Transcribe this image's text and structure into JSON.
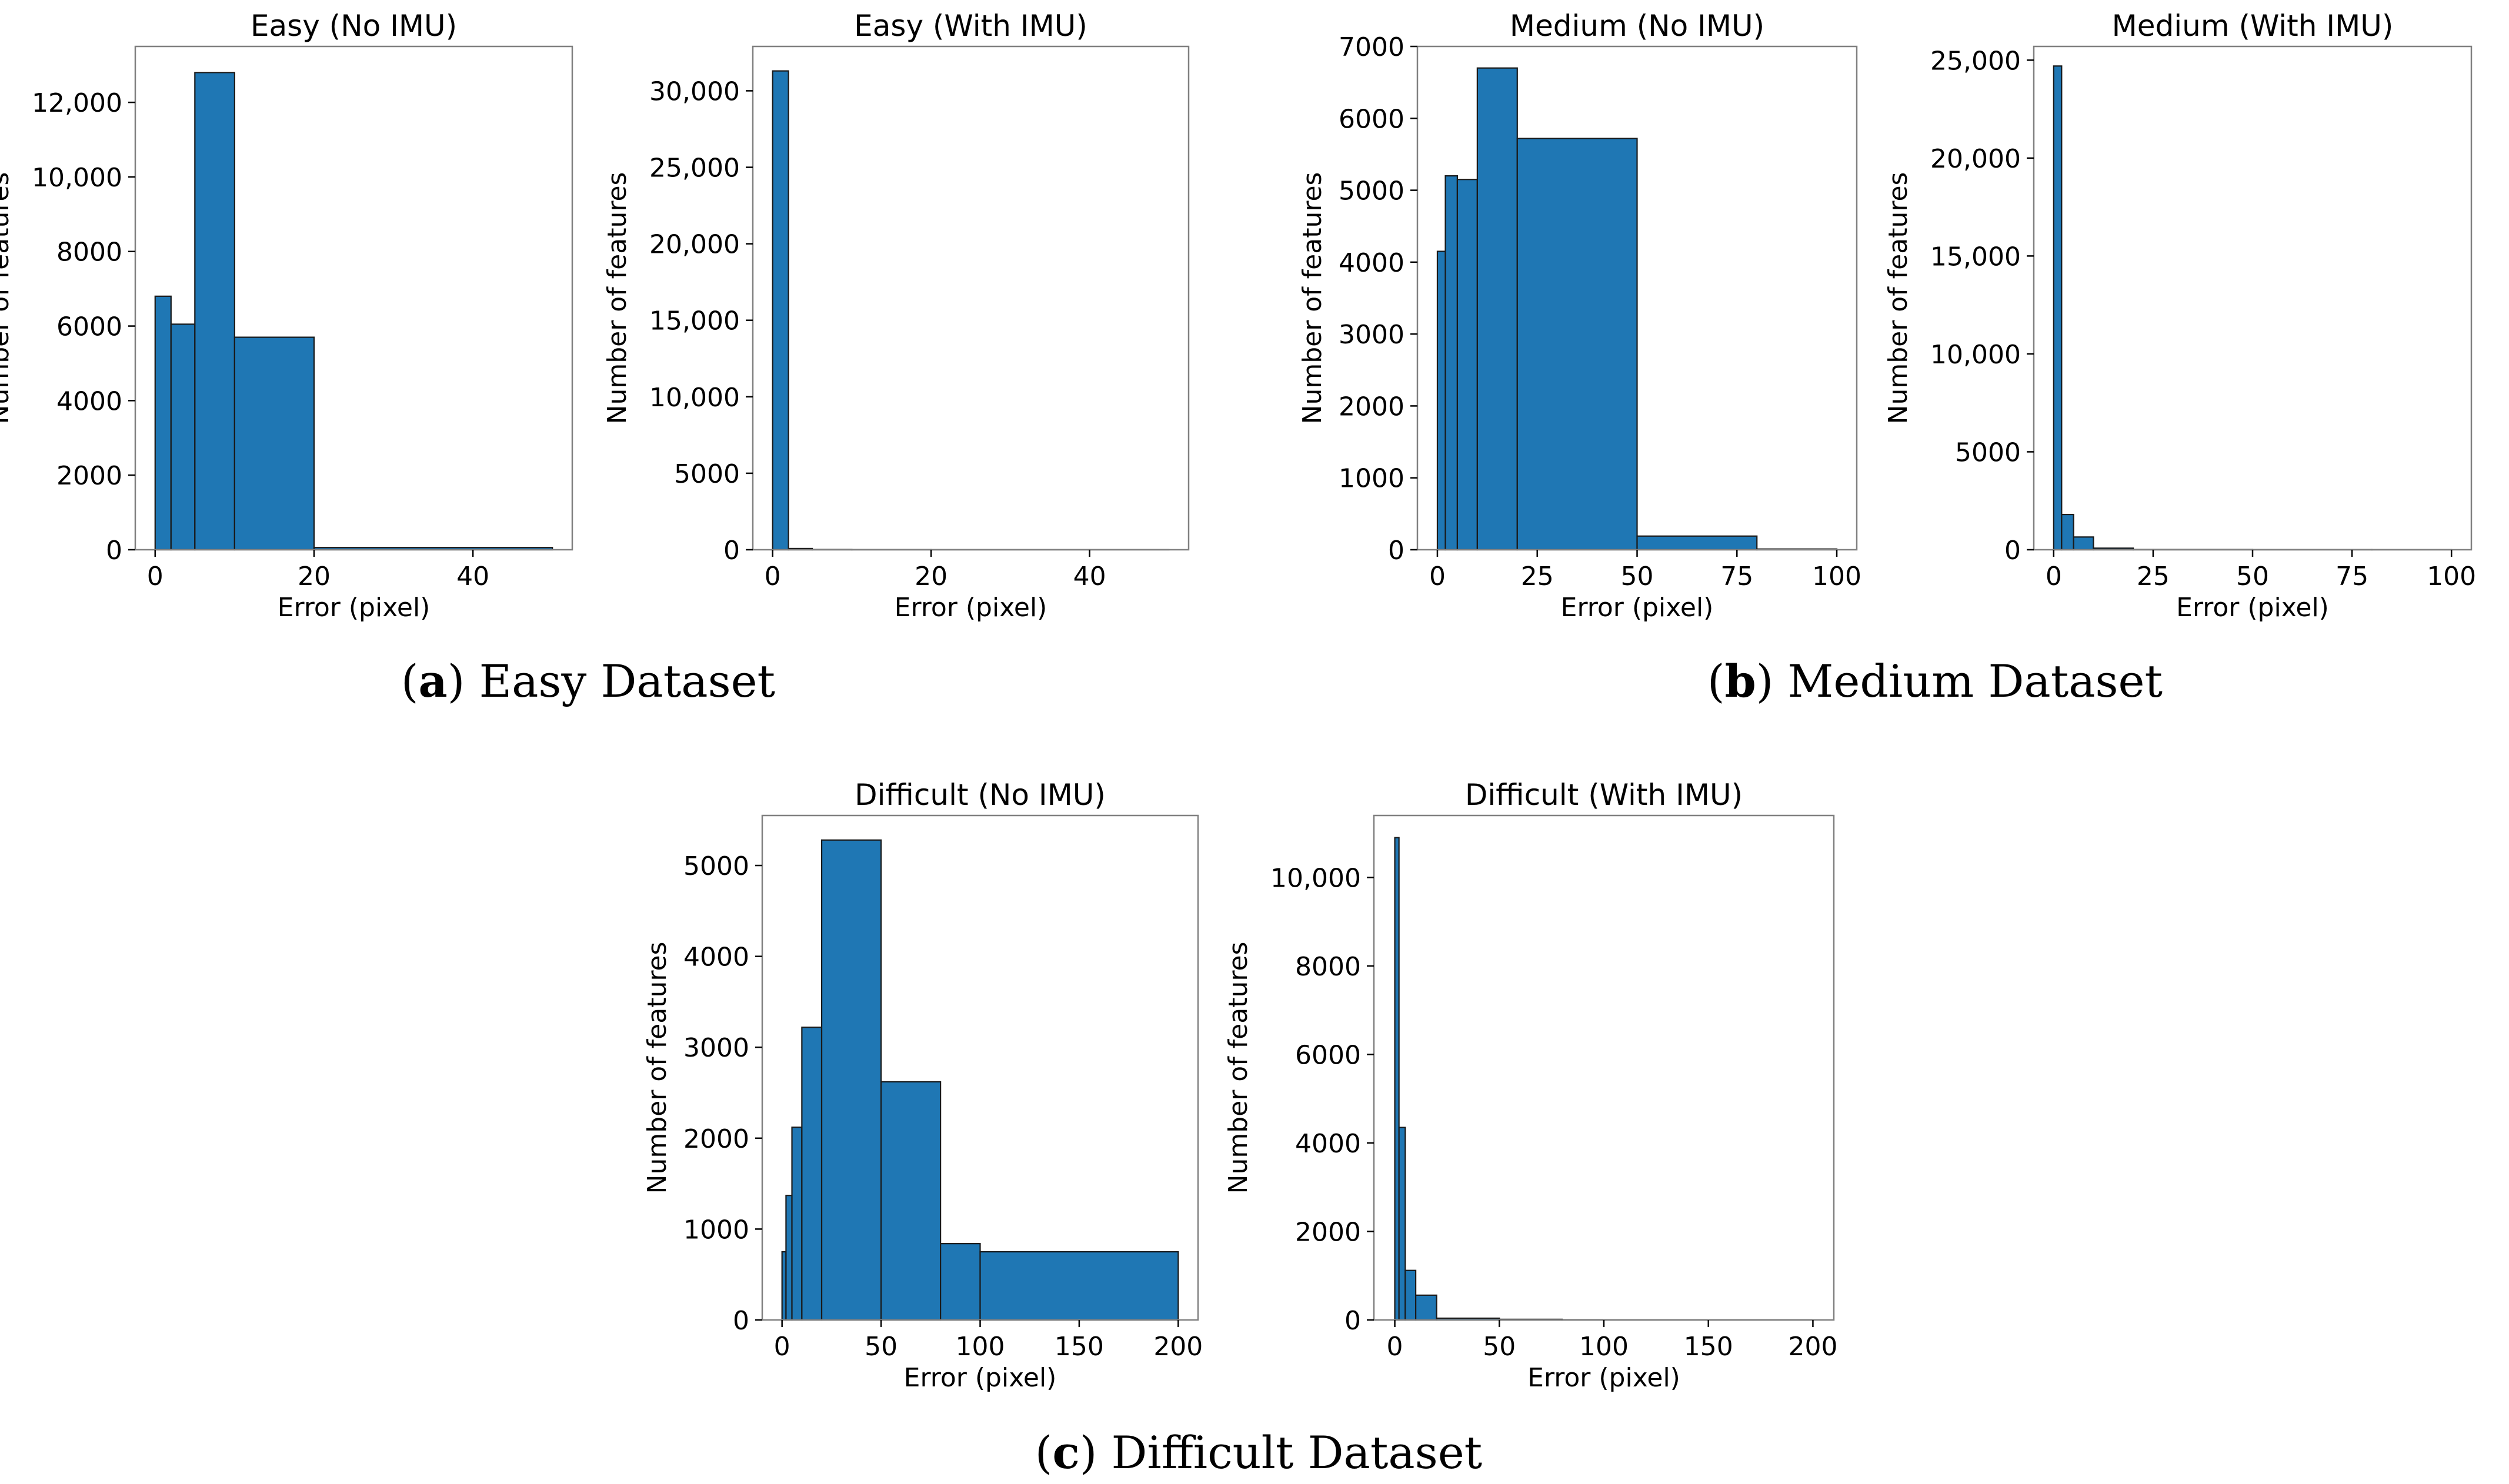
{
  "figure": {
    "captions": [
      {
        "letter": "a",
        "text": " Easy Dataset"
      },
      {
        "letter": "b",
        "text": " Medium Dataset"
      },
      {
        "letter": "c",
        "text": " Difficult Dataset"
      }
    ]
  },
  "colors": {
    "bar_fill": "#1f77b4",
    "bar_edge": "#1a1a1a",
    "frame": "#808080"
  },
  "chart_data": [
    {
      "type": "bar",
      "title": "Easy (No IMU)",
      "xlabel": "Error (pixel)",
      "ylabel": "Number of features",
      "xlim": [
        -2.5,
        52.5
      ],
      "ylim": [
        0,
        13500
      ],
      "xticks": [
        0,
        20,
        40
      ],
      "xtick_labels": [
        "0",
        "20",
        "40"
      ],
      "yticks": [
        0,
        2000,
        4000,
        6000,
        8000,
        10000,
        12000
      ],
      "ytick_labels": [
        "0",
        "2000",
        "4000",
        "6000",
        "8000",
        "10,000",
        "12,000"
      ],
      "bins": [
        [
          0,
          2,
          6800
        ],
        [
          2,
          5,
          6050
        ],
        [
          5,
          10,
          12800
        ],
        [
          10,
          20,
          5700
        ],
        [
          20,
          50,
          60
        ]
      ]
    },
    {
      "type": "bar",
      "title": "Easy (With IMU)",
      "xlabel": "Error (pixel)",
      "ylabel": "Number of features",
      "xlim": [
        -2.5,
        52.5
      ],
      "ylim": [
        0,
        32900
      ],
      "xticks": [
        0,
        20,
        40
      ],
      "xtick_labels": [
        "0",
        "20",
        "40"
      ],
      "yticks": [
        0,
        5000,
        10000,
        15000,
        20000,
        25000,
        30000
      ],
      "ytick_labels": [
        "0",
        "5000",
        "10,000",
        "15,000",
        "20,000",
        "25,000",
        "30,000"
      ],
      "bins": [
        [
          0,
          2,
          31300
        ],
        [
          2,
          5,
          80
        ],
        [
          5,
          10,
          15
        ],
        [
          10,
          20,
          5
        ],
        [
          20,
          50,
          2
        ]
      ]
    },
    {
      "type": "bar",
      "title": "Medium (No IMU)",
      "xlabel": "Error (pixel)",
      "ylabel": "Number of features",
      "xlim": [
        -5,
        105
      ],
      "ylim": [
        0,
        7000
      ],
      "xticks": [
        0,
        25,
        50,
        75,
        100
      ],
      "xtick_labels": [
        "0",
        "25",
        "50",
        "75",
        "100"
      ],
      "yticks": [
        0,
        1000,
        2000,
        3000,
        4000,
        5000,
        6000,
        7000
      ],
      "ytick_labels": [
        "0",
        "1000",
        "2000",
        "3000",
        "4000",
        "5000",
        "6000",
        "7000"
      ],
      "bins": [
        [
          0,
          2,
          4150
        ],
        [
          2,
          5,
          5200
        ],
        [
          5,
          10,
          5150
        ],
        [
          10,
          20,
          6700
        ],
        [
          20,
          50,
          5720
        ],
        [
          50,
          80,
          190
        ],
        [
          80,
          100,
          10
        ]
      ]
    },
    {
      "type": "bar",
      "title": "Medium (With IMU)",
      "xlabel": "Error (pixel)",
      "ylabel": "Number of features",
      "xlim": [
        -5,
        105
      ],
      "ylim": [
        0,
        25700
      ],
      "xticks": [
        0,
        25,
        50,
        75,
        100
      ],
      "xtick_labels": [
        "0",
        "25",
        "50",
        "75",
        "100"
      ],
      "yticks": [
        0,
        5000,
        10000,
        15000,
        20000,
        25000
      ],
      "ytick_labels": [
        "0",
        "5000",
        "10,000",
        "15,000",
        "20,000",
        "25,000"
      ],
      "bins": [
        [
          0,
          2,
          24700
        ],
        [
          2,
          5,
          1800
        ],
        [
          5,
          10,
          650
        ],
        [
          10,
          20,
          80
        ],
        [
          20,
          50,
          10
        ],
        [
          50,
          80,
          3
        ],
        [
          80,
          100,
          1
        ]
      ]
    },
    {
      "type": "bar",
      "title": "Difficult (No IMU)",
      "xlabel": "Error (pixel)",
      "ylabel": "Number of features",
      "xlim": [
        -10,
        210
      ],
      "ylim": [
        0,
        5550
      ],
      "xticks": [
        0,
        50,
        100,
        150,
        200
      ],
      "xtick_labels": [
        "0",
        "50",
        "100",
        "150",
        "200"
      ],
      "yticks": [
        0,
        1000,
        2000,
        3000,
        4000,
        5000
      ],
      "ytick_labels": [
        "0",
        "1000",
        "2000",
        "3000",
        "4000",
        "5000"
      ],
      "bins": [
        [
          0,
          2,
          750
        ],
        [
          2,
          5,
          1370
        ],
        [
          5,
          10,
          2120
        ],
        [
          10,
          20,
          3220
        ],
        [
          20,
          50,
          5280
        ],
        [
          50,
          80,
          2620
        ],
        [
          80,
          100,
          840
        ],
        [
          100,
          200,
          750
        ]
      ]
    },
    {
      "type": "bar",
      "title": "Difficult (With IMU)",
      "xlabel": "Error (pixel)",
      "ylabel": "Number of features",
      "xlim": [
        -10,
        210
      ],
      "ylim": [
        0,
        11400
      ],
      "xticks": [
        0,
        50,
        100,
        150,
        200
      ],
      "xtick_labels": [
        "0",
        "50",
        "100",
        "150",
        "200"
      ],
      "yticks": [
        0,
        2000,
        4000,
        6000,
        8000,
        10000
      ],
      "ytick_labels": [
        "0",
        "2000",
        "4000",
        "6000",
        "8000",
        "10,000"
      ],
      "bins": [
        [
          0,
          2,
          10900
        ],
        [
          2,
          5,
          4350
        ],
        [
          5,
          10,
          1120
        ],
        [
          10,
          20,
          560
        ],
        [
          20,
          50,
          40
        ],
        [
          50,
          80,
          15
        ],
        [
          80,
          100,
          5
        ],
        [
          100,
          200,
          2
        ]
      ]
    }
  ]
}
